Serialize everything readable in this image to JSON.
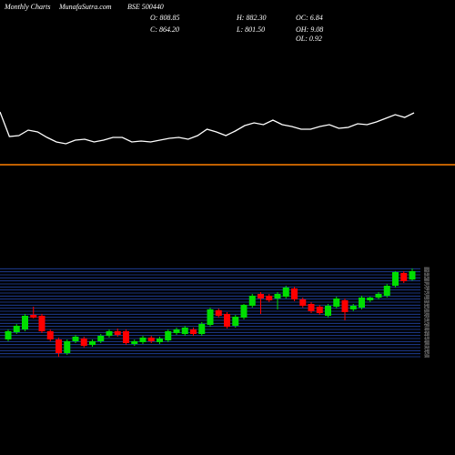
{
  "header": {
    "left": "Monthly Charts",
    "site": "MunafaSutra.com",
    "symbol": "BSE 500440",
    "open": "O: 808.85",
    "high": "H: 882.30",
    "oc": "OC: 6.84",
    "close": "C: 864.20",
    "low": "L: 801.50",
    "oh": "OH: 9.08",
    "ol": "OL: 0.92"
  },
  "chart_data": [
    {
      "type": "line",
      "color": "#ffffff",
      "ylim": [
        0,
        100
      ],
      "values": [
        57,
        30,
        31,
        37,
        35,
        29,
        24,
        22,
        26,
        27,
        24,
        26,
        29,
        29,
        24,
        25,
        24,
        26,
        28,
        29,
        27,
        31,
        38,
        35,
        31,
        36,
        42,
        45,
        43,
        48,
        43,
        41,
        38,
        38,
        41,
        43,
        39,
        40,
        44,
        43,
        46,
        50,
        54,
        51,
        56
      ]
    },
    {
      "type": "candlestick",
      "up_color": "#00dd00",
      "down_color": "#ff0000",
      "grid_color": "#2346a8",
      "ylim": [
        300,
        900
      ],
      "yticks": [
        300,
        320,
        340,
        360,
        380,
        400,
        420,
        440,
        460,
        480,
        500,
        520,
        540,
        560,
        580,
        600,
        620,
        640,
        660,
        680,
        700,
        720,
        740,
        760,
        780,
        800,
        820,
        840,
        860,
        880
      ],
      "candles": [
        [
          414,
          480,
          402,
          468
        ],
        [
          462,
          516,
          450,
          504
        ],
        [
          480,
          582,
          468,
          570
        ],
        [
          576,
          630,
          552,
          558
        ],
        [
          570,
          582,
          456,
          468
        ],
        [
          468,
          480,
          402,
          414
        ],
        [
          414,
          426,
          300,
          324
        ],
        [
          324,
          414,
          312,
          402
        ],
        [
          402,
          444,
          390,
          432
        ],
        [
          420,
          432,
          360,
          372
        ],
        [
          378,
          414,
          366,
          402
        ],
        [
          402,
          450,
          390,
          438
        ],
        [
          438,
          480,
          426,
          468
        ],
        [
          468,
          486,
          432,
          444
        ],
        [
          468,
          480,
          378,
          390
        ],
        [
          384,
          414,
          372,
          402
        ],
        [
          396,
          438,
          384,
          426
        ],
        [
          426,
          438,
          390,
          402
        ],
        [
          396,
          432,
          384,
          420
        ],
        [
          408,
          480,
          396,
          468
        ],
        [
          456,
          492,
          444,
          480
        ],
        [
          450,
          504,
          438,
          492
        ],
        [
          480,
          492,
          438,
          450
        ],
        [
          450,
          528,
          438,
          516
        ],
        [
          510,
          624,
          498,
          612
        ],
        [
          606,
          618,
          558,
          570
        ],
        [
          582,
          594,
          486,
          498
        ],
        [
          504,
          576,
          492,
          564
        ],
        [
          558,
          648,
          546,
          642
        ],
        [
          636,
          714,
          624,
          702
        ],
        [
          714,
          726,
          582,
          684
        ],
        [
          702,
          714,
          660,
          672
        ],
        [
          684,
          726,
          612,
          714
        ],
        [
          696,
          768,
          684,
          756
        ],
        [
          750,
          762,
          666,
          678
        ],
        [
          678,
          690,
          624,
          636
        ],
        [
          648,
          660,
          588,
          600
        ],
        [
          630,
          642,
          576,
          588
        ],
        [
          570,
          648,
          558,
          636
        ],
        [
          630,
          696,
          618,
          684
        ],
        [
          672,
          684,
          540,
          594
        ],
        [
          612,
          648,
          600,
          636
        ],
        [
          624,
          702,
          612,
          690
        ],
        [
          672,
          696,
          660,
          690
        ],
        [
          690,
          726,
          678,
          714
        ],
        [
          702,
          780,
          690,
          768
        ],
        [
          768,
          864,
          756,
          858
        ],
        [
          852,
          864,
          786,
          798
        ],
        [
          808.85,
          882.3,
          801.5,
          864.2
        ]
      ]
    }
  ]
}
